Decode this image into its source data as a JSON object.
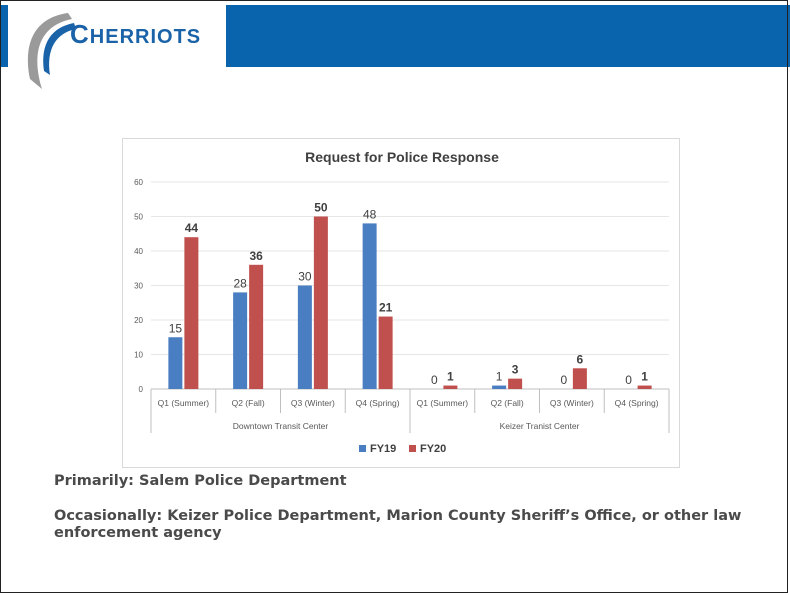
{
  "logo": {
    "text_big_c": "C",
    "text_rest": "HERRIOTS"
  },
  "colors": {
    "header": "#0a63ad",
    "fy19": "#4a7ec2",
    "fy20": "#c0504d"
  },
  "chart_data": {
    "type": "bar",
    "title": "Request for Police Response",
    "ylim": [
      0,
      60
    ],
    "yticks": [
      0,
      10,
      20,
      30,
      40,
      50,
      60
    ],
    "groups": [
      {
        "name": "Downtown Transit Center",
        "categories": [
          "Q1 (Summer)",
          "Q2 (Fall)",
          "Q3 (Winter)",
          "Q4 (Spring)"
        ]
      },
      {
        "name": "Keizer Tranist Center",
        "categories": [
          "Q1 (Summer)",
          "Q2 (Fall)",
          "Q3 (Winter)",
          "Q4 (Spring)"
        ]
      }
    ],
    "series": [
      {
        "name": "FY19",
        "color": "#4a7ec2",
        "values": [
          15,
          28,
          30,
          48,
          0,
          1,
          0,
          0
        ]
      },
      {
        "name": "FY20",
        "color": "#c0504d",
        "values": [
          44,
          36,
          50,
          21,
          1,
          3,
          6,
          1
        ]
      }
    ],
    "legend": "bottom",
    "grid": true
  },
  "text": {
    "primarily": "Primarily: Salem Police Department",
    "occasionally": "Occasionally: Keizer Police Department, Marion County Sheriff’s Office, or other law enforcement agency"
  }
}
